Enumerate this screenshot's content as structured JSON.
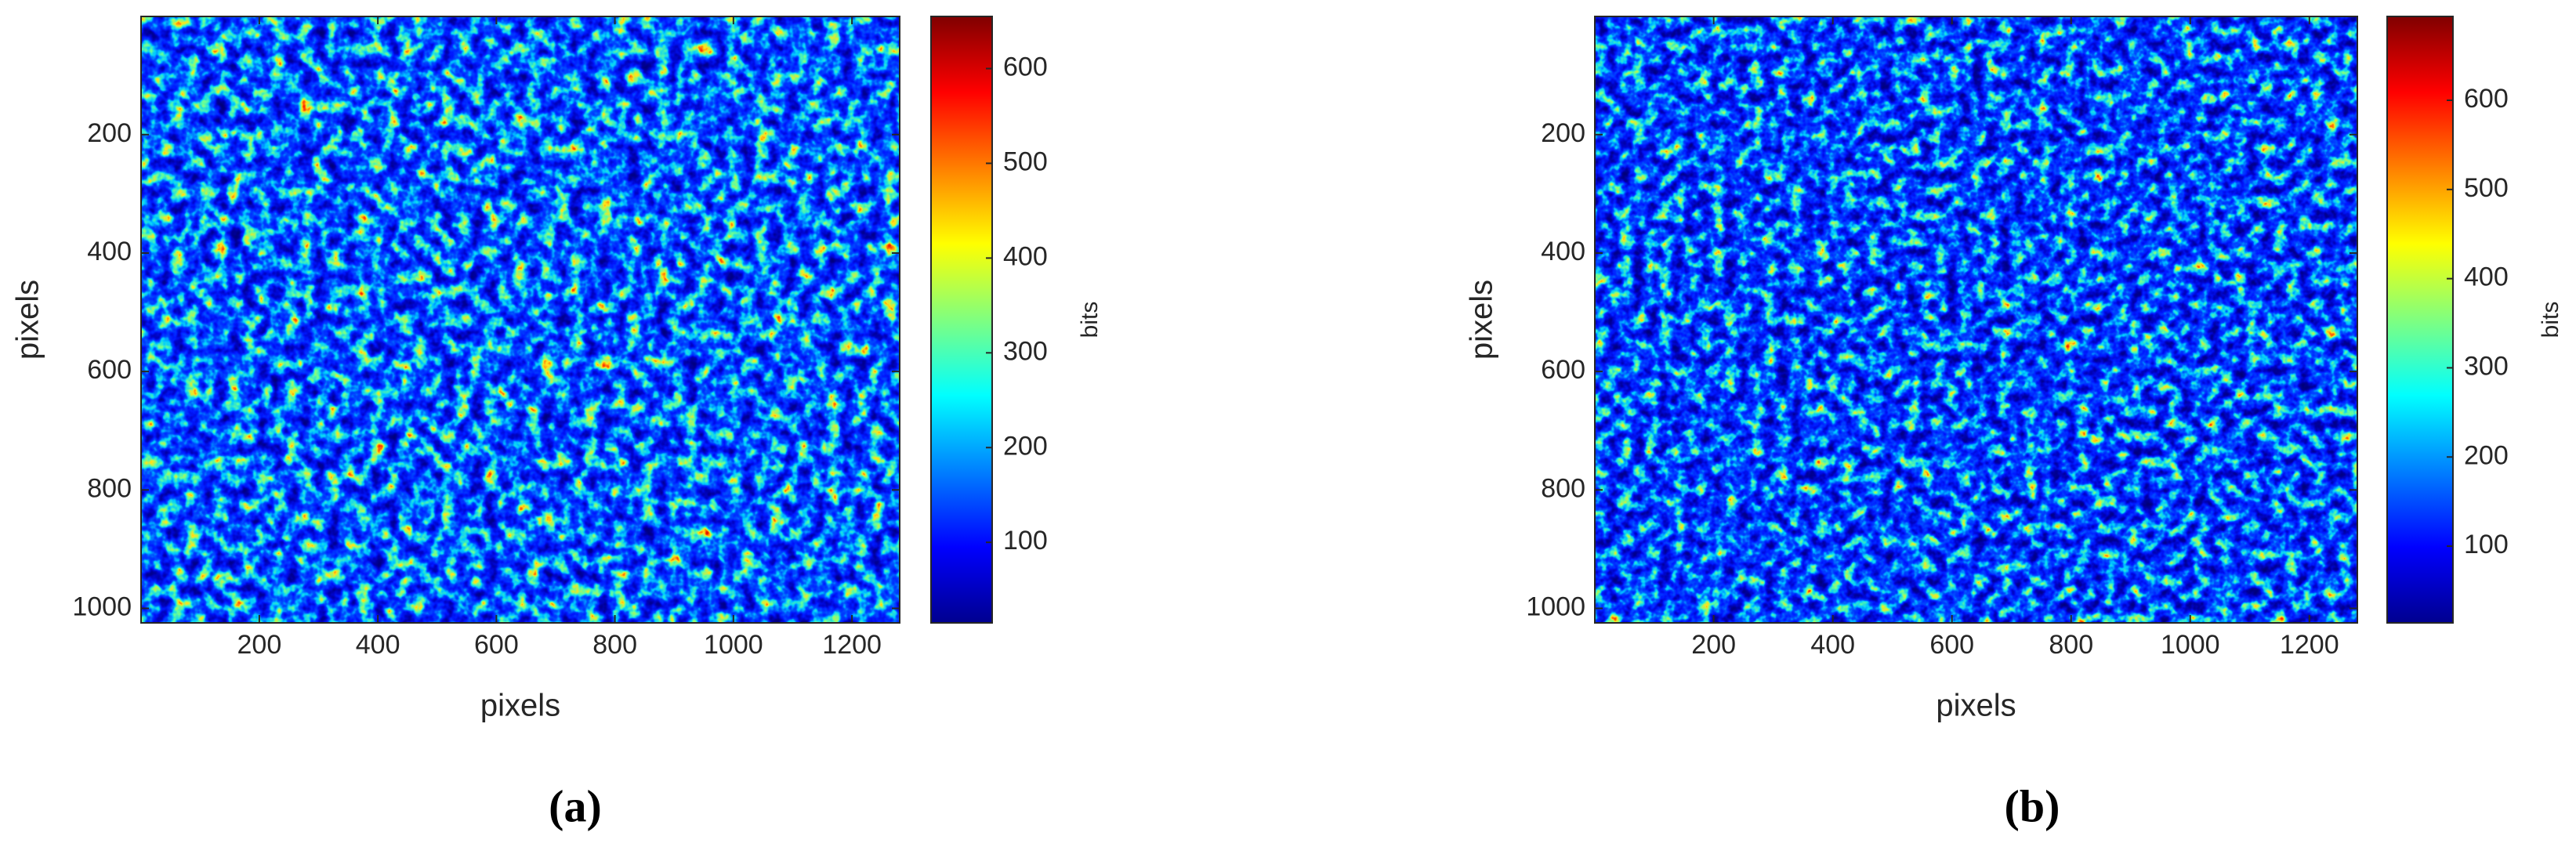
{
  "chart_data": [
    {
      "type": "heatmap",
      "x_label": "pixels",
      "y_label": "pixels",
      "colorbar_label": "bits",
      "caption": "(a)",
      "xlim": [
        0.5,
        1280.5
      ],
      "ylim": [
        0.5,
        1024.5
      ],
      "y_reversed": true,
      "xticks": [
        200,
        400,
        600,
        800,
        1000,
        1200
      ],
      "yticks": [
        200,
        400,
        600,
        800,
        1000
      ],
      "clim": [
        15,
        655
      ],
      "cticks": [
        100,
        200,
        300,
        400,
        500,
        600
      ],
      "colormap": "jet"
    },
    {
      "type": "heatmap",
      "x_label": "pixels",
      "y_label": "pixels",
      "colorbar_label": "bits",
      "caption": "(b)",
      "xlim": [
        0.5,
        1280.5
      ],
      "ylim": [
        0.5,
        1024.5
      ],
      "y_reversed": true,
      "xticks": [
        200,
        400,
        600,
        800,
        1000,
        1200
      ],
      "yticks": [
        200,
        400,
        600,
        800,
        1000
      ],
      "clim": [
        14,
        694
      ],
      "cticks": [
        100,
        200,
        300,
        400,
        500,
        600
      ],
      "colormap": "jet"
    }
  ]
}
